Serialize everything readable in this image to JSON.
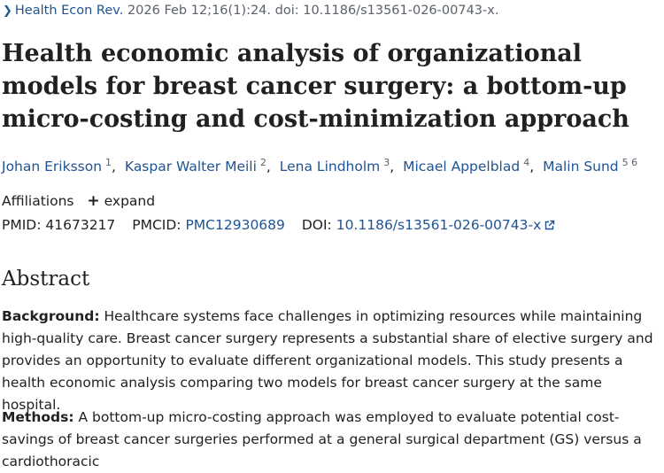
{
  "citation": {
    "journal": "Health Econ Rev.",
    "details": "2026 Feb 12;16(1):24. doi: 10.1186/s13561-026-00743-x."
  },
  "title": "Health economic analysis of organizational models for breast cancer surgery: a bottom-up micro-costing and cost-minimization approach",
  "authors": [
    {
      "name": "Johan Eriksson",
      "sup": "1"
    },
    {
      "name": "Kaspar Walter Meili",
      "sup": "2"
    },
    {
      "name": "Lena Lindholm",
      "sup": "3"
    },
    {
      "name": "Micael Appelblad",
      "sup": "4"
    },
    {
      "name": "Malin Sund",
      "sup": "5 6"
    }
  ],
  "affiliations": {
    "label": "Affiliations",
    "expand_label": "expand"
  },
  "ids": {
    "pmid_label": "PMID:",
    "pmid": "41673217",
    "pmcid_label": "PMCID:",
    "pmcid": "PMC12930689",
    "doi_label": "DOI:",
    "doi": "10.1186/s13561-026-00743-x"
  },
  "abstract": {
    "heading": "Abstract",
    "background_label": "Background:",
    "background_text": "Healthcare systems face challenges in optimizing resources while maintaining high-quality care. Breast cancer surgery represents a substantial share of elective surgery and provides an opportunity to evaluate different organizational models. This study presents a health economic analysis comparing two models for breast cancer surgery at the same hospital.",
    "methods_label": "Methods:",
    "methods_text": "A bottom-up micro-costing approach was employed to evaluate potential cost-savings of breast cancer surgeries performed at a general surgical department (GS) versus a cardiothoracic"
  },
  "colors": {
    "link": "#205493",
    "text": "#212121",
    "muted": "#5b616b"
  },
  "icons": [
    "chevron-right-icon",
    "plus-icon",
    "external-link-icon"
  ]
}
